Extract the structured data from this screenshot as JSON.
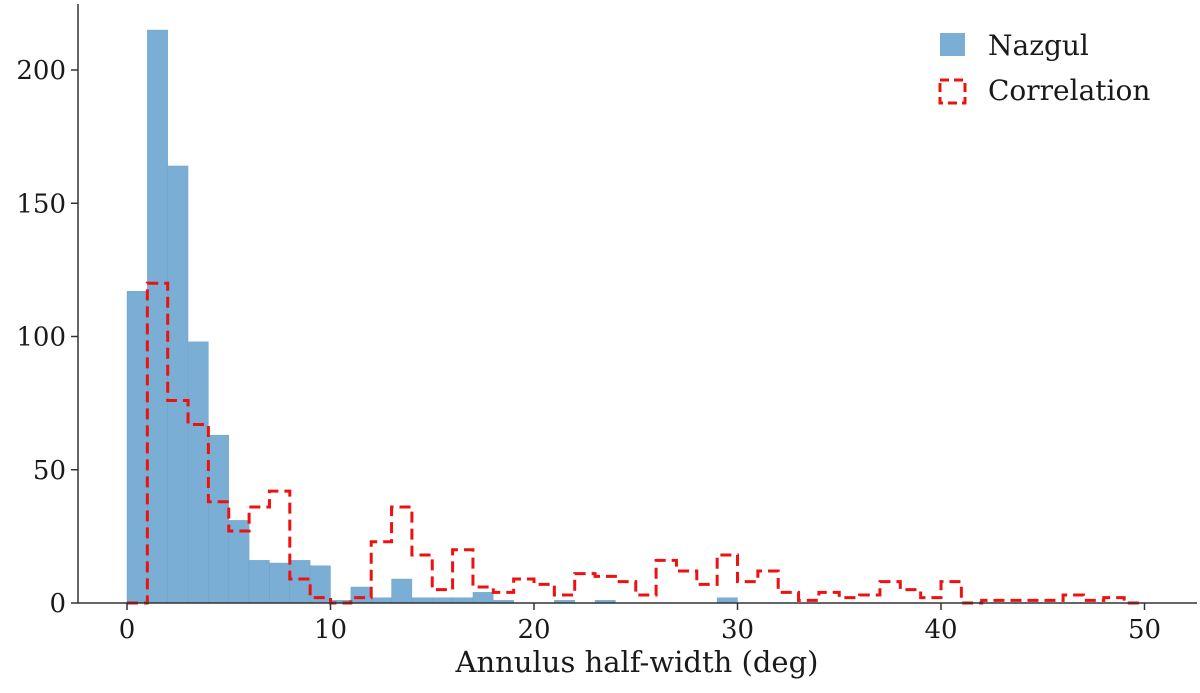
{
  "chart_data": {
    "type": "bar",
    "xlabel": "Annulus half-width (deg)",
    "ylabel": "",
    "xlim": [
      -2.5,
      52.5
    ],
    "ylim": [
      0,
      226
    ],
    "xticks": [
      0,
      10,
      20,
      30,
      40,
      50
    ],
    "yticks": [
      0,
      50,
      100,
      150,
      200
    ],
    "grid": false,
    "legend_position": "top-right",
    "bin_width": 1,
    "series": [
      {
        "name": "Nazgul",
        "style": "filled",
        "color": "#7aaed4",
        "bin_edges_start": 0,
        "values": [
          117,
          215,
          164,
          98,
          63,
          31,
          16,
          15,
          16,
          14,
          1,
          6,
          2,
          9,
          2,
          2,
          2,
          4,
          1,
          0,
          0,
          1,
          0,
          1,
          0,
          0,
          0,
          0,
          0,
          2,
          0,
          0,
          0,
          0,
          0,
          0,
          0,
          0,
          0,
          0,
          0,
          0,
          0,
          0,
          0,
          0,
          0,
          0,
          0,
          0
        ]
      },
      {
        "name": "Correlation",
        "style": "step-dashed",
        "color": "#ee1111",
        "bin_edges_start": 0,
        "values": [
          0,
          120,
          76,
          67,
          38,
          27,
          36,
          42,
          9,
          2,
          0,
          2,
          23,
          36,
          18,
          5,
          20,
          6,
          4,
          9,
          7,
          3,
          11,
          10,
          8,
          3,
          16,
          12,
          7,
          18,
          8,
          12,
          4,
          1,
          4,
          2,
          3,
          8,
          5,
          2,
          8,
          0,
          1,
          1,
          1,
          1,
          3,
          1,
          2,
          0
        ]
      }
    ]
  }
}
